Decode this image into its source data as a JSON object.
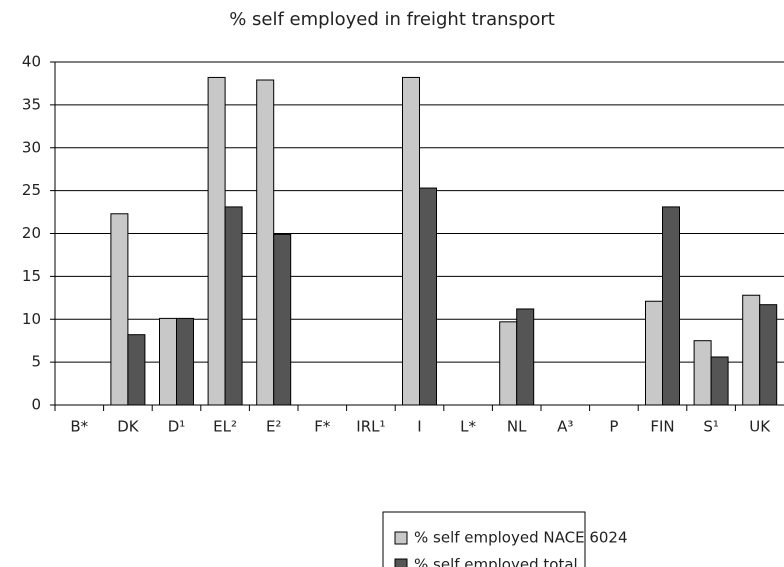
{
  "chart_data": {
    "type": "bar",
    "title": "% self employed in freight transport",
    "categories": [
      "B*",
      "DK",
      "D¹",
      "EL²",
      "E²",
      "F*",
      "IRL¹",
      "I",
      "L*",
      "NL",
      "A³",
      "P",
      "FIN",
      "S¹",
      "UK"
    ],
    "series": [
      {
        "name": "% self employed NACE 6024",
        "color": "#c8c8c8",
        "values": [
          null,
          22.3,
          10.1,
          38.2,
          37.9,
          null,
          null,
          38.2,
          null,
          9.7,
          null,
          null,
          12.1,
          7.5,
          12.8
        ]
      },
      {
        "name": "% self employed total",
        "color": "#555555",
        "values": [
          null,
          8.2,
          10.1,
          23.1,
          19.9,
          null,
          null,
          25.3,
          null,
          11.2,
          null,
          null,
          23.1,
          5.6,
          11.7
        ]
      }
    ],
    "ylim": [
      0,
      40
    ],
    "yticks": [
      0,
      5,
      10,
      15,
      20,
      25,
      30,
      35,
      40
    ],
    "grid": true
  }
}
